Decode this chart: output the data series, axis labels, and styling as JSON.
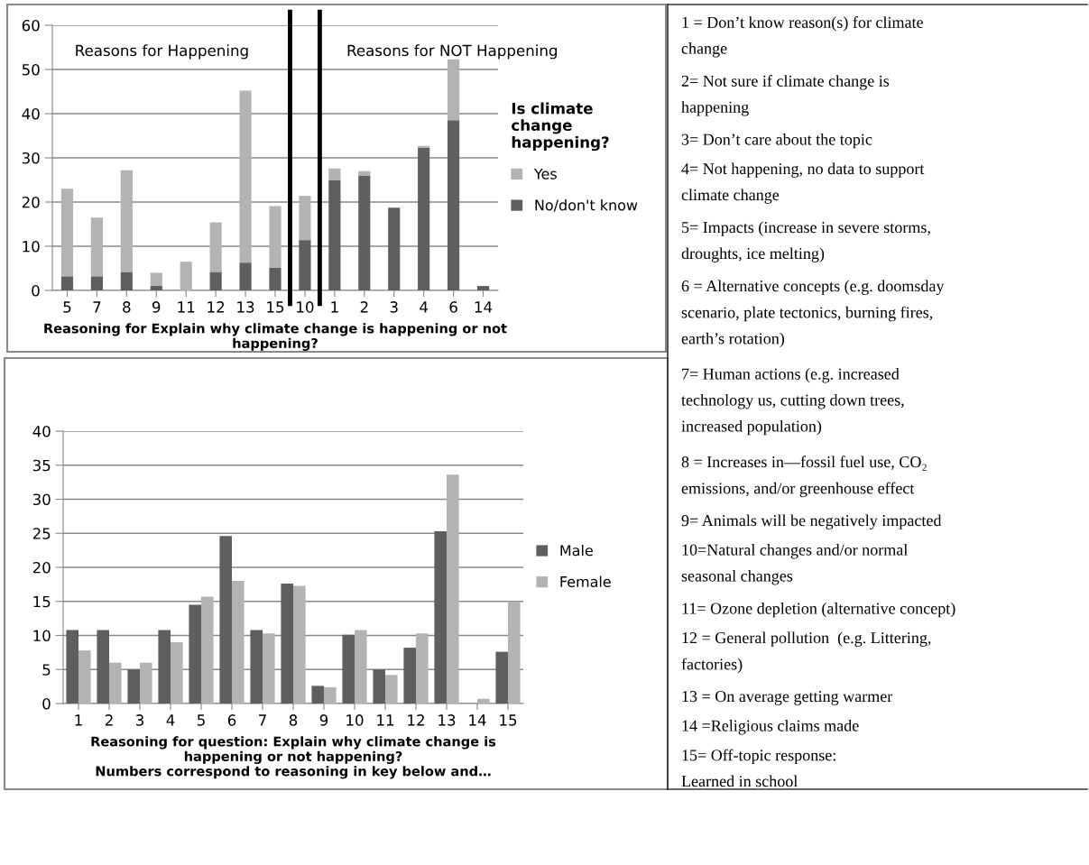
{
  "chart_data": [
    {
      "type": "bar",
      "stacked": true,
      "categories": [
        "5",
        "7",
        "8",
        "9",
        "11",
        "12",
        "13",
        "15",
        "10",
        "1",
        "2",
        "3",
        "4",
        "6",
        "14"
      ],
      "series": [
        {
          "name": "No/don't know",
          "color": "#5f5f5f",
          "values": [
            3.2,
            3.2,
            4.2,
            1.1,
            0,
            4.2,
            6.3,
            5.2,
            11.4,
            25,
            26,
            18.7,
            32.3,
            38.5,
            1
          ]
        },
        {
          "name": "Yes",
          "color": "#b3b3b3",
          "values": [
            19.8,
            13.3,
            23,
            2.9,
            6.5,
            11.2,
            38.9,
            13.9,
            10,
            2.6,
            1,
            0,
            0.4,
            13.8,
            0
          ]
        }
      ],
      "ylim": [
        0,
        60
      ],
      "yticks": [
        0,
        10,
        20,
        30,
        40,
        50,
        60
      ],
      "grid": "y",
      "legend": "right",
      "legend_title": "Is climate change happening?",
      "xlabel": "Reasoning for Explain why climate change is happening or not happening?",
      "annotations": [
        "Reasons for Happening",
        "Reasons for NOT Happening"
      ]
    },
    {
      "type": "bar",
      "categories": [
        "1",
        "2",
        "3",
        "4",
        "5",
        "6",
        "7",
        "8",
        "9",
        "10",
        "11",
        "12",
        "13",
        "14",
        "15"
      ],
      "series": [
        {
          "name": "Male",
          "color": "#5f5f5f",
          "values": [
            10.8,
            10.8,
            5,
            10.8,
            14.5,
            24.6,
            10.8,
            17.6,
            2.6,
            10.1,
            5,
            8.2,
            25.3,
            0,
            7.6
          ]
        },
        {
          "name": "Female",
          "color": "#b3b3b3",
          "values": [
            7.8,
            6,
            6,
            9,
            15.7,
            18,
            10.3,
            17.3,
            2.4,
            10.8,
            4.2,
            10.3,
            33.6,
            0.7,
            15
          ]
        }
      ],
      "ylim": [
        0,
        40
      ],
      "yticks": [
        0,
        5,
        10,
        15,
        20,
        25,
        30,
        35,
        40
      ],
      "grid": "y",
      "legend": "right",
      "xlabel": "Reasoning for question: Explain why climate change is\nhappening or not happening?\nNumbers correspond to reasoning in key below and…"
    },
    {
      "type": "other",
      "annotations": [
        "1 = Don’t know reason(s) for climate\nchange",
        "2= Not sure if climate change is\nhappening",
        "3= Don’t care about the topic",
        "4= Not happening, no data to support\nclimate change",
        "5= Impacts (increase in severe storms,\ndroughts, ice melting)",
        "6 = Alternative concepts (e.g. doomsday\nscenario, plate tectonics, burning fires,\nearth’s rotation)",
        "7= Human actions (e.g. increased\ntechnology us, cutting down trees,\nincreased population)",
        "8 = Increases in—fossil fuel use, CO₂\nemissions, and/or greenhouse effect",
        "9= Animals will be negatively impacted",
        "10=Natural changes and/or normal\nseasonal changes",
        "11= Ozone depletion (alternative concept)",
        "12 = General pollution  (e.g. Littering,\nfactories)",
        "13 = On average getting warmer",
        "14 =Religious claims made",
        "15= Off-topic response:\nLearned in school"
      ]
    }
  ]
}
